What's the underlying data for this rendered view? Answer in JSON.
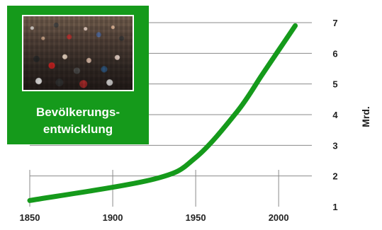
{
  "colors": {
    "line": "#159a1b",
    "panel": "#159a1b",
    "grid": "#8a8a8a",
    "text": "#222222"
  },
  "panel": {
    "title_line_1": "Bevölkerungs-",
    "title_line_2": "entwicklung"
  },
  "chart_data": {
    "type": "line",
    "title": "Bevölkerungs- entwicklung",
    "xlabel": "",
    "ylabel": "Mrd.",
    "unit_label": "Mrd.",
    "xlim": [
      1850,
      2020
    ],
    "ylim": [
      1,
      7
    ],
    "x_ticks": [
      1850,
      1900,
      1950,
      2000
    ],
    "y_ticks": [
      1,
      2,
      3,
      4,
      5,
      6,
      7
    ],
    "grid": true,
    "legend": "none",
    "series": [
      {
        "x": [
          1850,
          1925,
          1950,
          1975,
          1990,
          2000,
          2010
        ],
        "values": [
          1.2,
          1.9,
          2.6,
          4.1,
          5.3,
          6.1,
          6.9
        ]
      }
    ]
  }
}
